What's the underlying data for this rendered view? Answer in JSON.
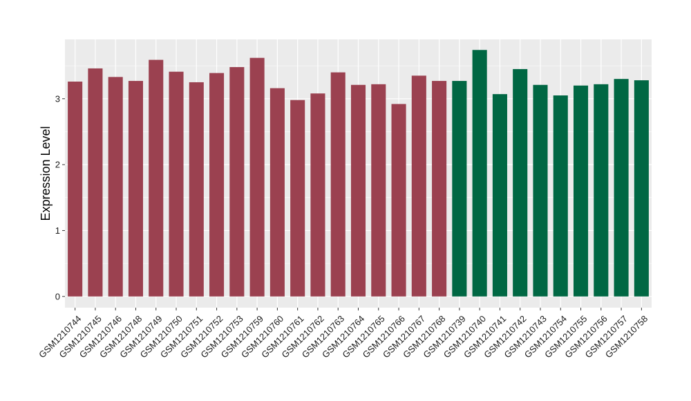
{
  "chart_data": {
    "type": "bar",
    "ylabel": "Expression Level",
    "ylim": [
      -0.17,
      3.9
    ],
    "yticks": [
      0,
      1,
      2,
      3
    ],
    "ytick_labels": [
      "0",
      "1",
      "2",
      "3"
    ],
    "grid": true,
    "categories": [
      "GSM1210744",
      "GSM1210745",
      "GSM1210746",
      "GSM1210748",
      "GSM1210749",
      "GSM1210750",
      "GSM1210751",
      "GSM1210752",
      "GSM1210753",
      "GSM1210759",
      "GSM1210760",
      "GSM1210761",
      "GSM1210762",
      "GSM1210763",
      "GSM1210764",
      "GSM1210765",
      "GSM1210766",
      "GSM1210767",
      "GSM1210768",
      "GSM1210739",
      "GSM1210740",
      "GSM1210741",
      "GSM1210742",
      "GSM1210743",
      "GSM1210754",
      "GSM1210755",
      "GSM1210756",
      "GSM1210757",
      "GSM1210758"
    ],
    "values": [
      3.26,
      3.46,
      3.33,
      3.27,
      3.59,
      3.41,
      3.25,
      3.39,
      3.48,
      3.62,
      3.16,
      2.98,
      3.08,
      3.4,
      3.21,
      3.22,
      2.92,
      3.35,
      3.27,
      3.27,
      3.74,
      3.07,
      3.45,
      3.21,
      3.05,
      3.2,
      3.22,
      3.3,
      3.28
    ],
    "bar_colors": [
      "#9b4150",
      "#9b4150",
      "#9b4150",
      "#9b4150",
      "#9b4150",
      "#9b4150",
      "#9b4150",
      "#9b4150",
      "#9b4150",
      "#9b4150",
      "#9b4150",
      "#9b4150",
      "#9b4150",
      "#9b4150",
      "#9b4150",
      "#9b4150",
      "#9b4150",
      "#9b4150",
      "#9b4150",
      "#006743",
      "#006743",
      "#006743",
      "#006743",
      "#006743",
      "#006743",
      "#006743",
      "#006743",
      "#006743",
      "#006743"
    ],
    "panel_background": "#ebebeb",
    "grid_color": "#ffffff"
  }
}
